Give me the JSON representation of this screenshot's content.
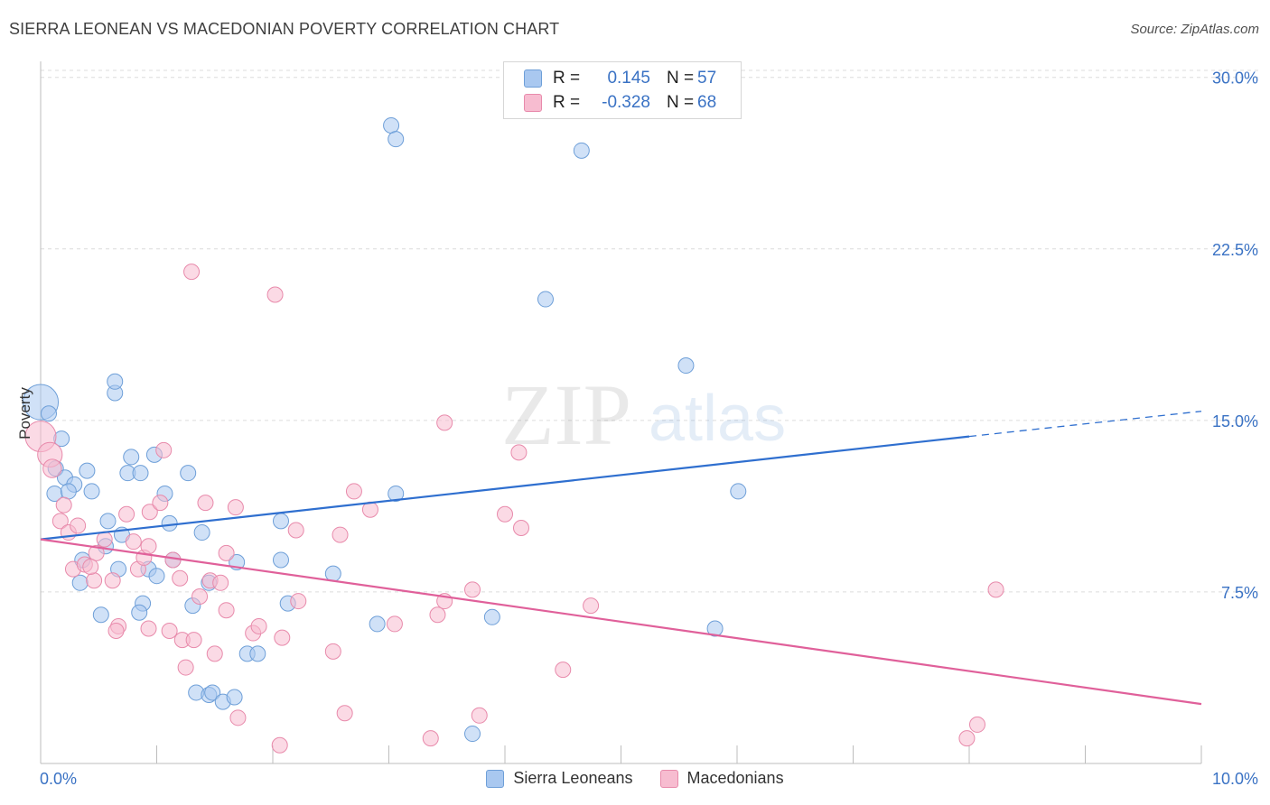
{
  "header": {
    "title": "SIERRA LEONEAN VS MACEDONIAN POVERTY CORRELATION CHART",
    "source": "Source: ZipAtlas.com"
  },
  "watermark": {
    "zip": "ZIP",
    "atlas": "atlas"
  },
  "legend": {
    "r_label": "R =",
    "n_label": "N =",
    "series": [
      {
        "name": "Sierra Leoneans",
        "r": "0.145",
        "n": "57",
        "color": "#a9c8f0",
        "stroke": "#6e9fd8"
      },
      {
        "name": "Macedonians",
        "r": "-0.328",
        "n": "68",
        "color": "#f7bcd0",
        "stroke": "#e88aab"
      }
    ]
  },
  "chart_data": {
    "type": "scatter",
    "title": "SIERRA LEONEAN VS MACEDONIAN POVERTY CORRELATION CHART",
    "xlabel": "",
    "ylabel": "Poverty",
    "xlim": [
      0,
      10
    ],
    "ylim": [
      0,
      30.7
    ],
    "x_tick_labels": [
      "0.0%",
      "10.0%"
    ],
    "y_ticks": [
      7.5,
      15.0,
      22.5,
      30.0
    ],
    "y_tick_labels": [
      "7.5%",
      "15.0%",
      "22.5%",
      "30.0%"
    ],
    "series": [
      {
        "name": "Sierra Leoneans",
        "color": "#a9c8f0",
        "stroke": "#6e9fd8",
        "line_color": "#2f6fcf",
        "trend": {
          "x0": 0,
          "y0": 9.8,
          "x1": 8.0,
          "y1": 14.3,
          "x_end": 10.0,
          "y_end": 15.4
        },
        "points": [
          [
            0.0,
            15.8,
            2.3
          ],
          [
            0.07,
            15.3,
            1
          ],
          [
            0.18,
            14.2,
            1
          ],
          [
            0.13,
            12.9,
            1
          ],
          [
            0.21,
            12.5,
            1
          ],
          [
            0.29,
            12.2,
            1
          ],
          [
            0.4,
            12.8,
            1
          ],
          [
            0.12,
            11.8,
            1
          ],
          [
            0.24,
            11.9,
            1
          ],
          [
            0.44,
            11.9,
            1
          ],
          [
            0.64,
            16.2,
            1
          ],
          [
            0.64,
            16.7,
            1
          ],
          [
            0.78,
            13.4,
            1
          ],
          [
            0.98,
            13.5,
            1
          ],
          [
            0.75,
            12.7,
            1
          ],
          [
            0.86,
            12.7,
            1
          ],
          [
            1.27,
            12.7,
            1
          ],
          [
            1.07,
            11.8,
            1
          ],
          [
            0.58,
            10.6,
            1
          ],
          [
            0.7,
            10.0,
            1
          ],
          [
            0.56,
            9.5,
            1
          ],
          [
            1.11,
            10.5,
            1
          ],
          [
            1.39,
            10.1,
            1
          ],
          [
            0.36,
            8.9,
            1
          ],
          [
            0.67,
            8.5,
            1
          ],
          [
            0.93,
            8.5,
            1
          ],
          [
            1.0,
            8.2,
            1
          ],
          [
            1.14,
            8.9,
            1
          ],
          [
            0.34,
            7.9,
            1
          ],
          [
            1.45,
            7.9,
            1
          ],
          [
            1.69,
            8.8,
            1
          ],
          [
            2.07,
            10.6,
            1
          ],
          [
            2.07,
            8.9,
            1
          ],
          [
            2.52,
            8.3,
            1
          ],
          [
            0.88,
            7.0,
            1
          ],
          [
            1.31,
            6.9,
            1
          ],
          [
            0.85,
            6.6,
            1
          ],
          [
            0.52,
            6.5,
            1
          ],
          [
            2.13,
            7.0,
            1
          ],
          [
            3.02,
            27.9,
            1
          ],
          [
            3.06,
            27.3,
            1
          ],
          [
            4.66,
            26.8,
            1
          ],
          [
            4.35,
            20.3,
            1
          ],
          [
            5.56,
            17.4,
            1
          ],
          [
            3.06,
            11.8,
            1
          ],
          [
            6.01,
            11.9,
            1
          ],
          [
            2.9,
            6.1,
            1
          ],
          [
            3.89,
            6.4,
            1
          ],
          [
            5.81,
            5.9,
            1
          ],
          [
            1.78,
            4.8,
            1
          ],
          [
            1.87,
            4.8,
            1
          ],
          [
            1.34,
            3.1,
            1
          ],
          [
            1.45,
            3.0,
            1
          ],
          [
            1.48,
            3.1,
            1
          ],
          [
            1.57,
            2.7,
            1
          ],
          [
            1.67,
            2.9,
            1
          ],
          [
            3.72,
            1.3,
            1
          ]
        ]
      },
      {
        "name": "Macedonians",
        "color": "#f7bcd0",
        "stroke": "#e88aab",
        "line_color": "#e0609a",
        "trend": {
          "x0": 0,
          "y0": 9.8,
          "x1": 10.0,
          "y1": 2.6
        },
        "points": [
          [
            0.0,
            14.3,
            2.0
          ],
          [
            0.08,
            13.5,
            1.6
          ],
          [
            0.1,
            12.9,
            1.2
          ],
          [
            0.2,
            11.3,
            1
          ],
          [
            0.17,
            10.6,
            1
          ],
          [
            0.24,
            10.1,
            1
          ],
          [
            0.32,
            10.4,
            1
          ],
          [
            0.28,
            8.5,
            1
          ],
          [
            0.38,
            8.7,
            1
          ],
          [
            0.46,
            8.0,
            1
          ],
          [
            0.48,
            9.2,
            1
          ],
          [
            0.55,
            9.8,
            1
          ],
          [
            0.62,
            8.0,
            1
          ],
          [
            0.74,
            10.9,
            1
          ],
          [
            0.8,
            9.7,
            1
          ],
          [
            0.84,
            8.5,
            1
          ],
          [
            0.89,
            9.0,
            1
          ],
          [
            0.94,
            11.0,
            1
          ],
          [
            1.03,
            11.4,
            1
          ],
          [
            1.06,
            13.7,
            1
          ],
          [
            1.14,
            8.9,
            1
          ],
          [
            1.2,
            8.1,
            1
          ],
          [
            1.37,
            7.3,
            1
          ],
          [
            1.42,
            11.4,
            1
          ],
          [
            1.46,
            8.0,
            1
          ],
          [
            1.6,
            9.2,
            1
          ],
          [
            1.68,
            11.2,
            1
          ],
          [
            1.3,
            21.5,
            1
          ],
          [
            2.02,
            20.5,
            1
          ],
          [
            0.67,
            6.0,
            1
          ],
          [
            0.65,
            5.8,
            1
          ],
          [
            0.93,
            5.9,
            1
          ],
          [
            1.11,
            5.8,
            1
          ],
          [
            1.22,
            5.4,
            1
          ],
          [
            1.32,
            5.4,
            1
          ],
          [
            1.25,
            4.2,
            1
          ],
          [
            1.5,
            4.8,
            1
          ],
          [
            1.6,
            6.7,
            1
          ],
          [
            1.83,
            5.7,
            1
          ],
          [
            1.88,
            6.0,
            1
          ],
          [
            2.08,
            5.5,
            1
          ],
          [
            2.22,
            7.1,
            1
          ],
          [
            2.2,
            10.2,
            1
          ],
          [
            2.58,
            10.0,
            1
          ],
          [
            2.7,
            11.9,
            1
          ],
          [
            2.84,
            11.1,
            1
          ],
          [
            2.52,
            4.9,
            1
          ],
          [
            2.62,
            2.2,
            1
          ],
          [
            1.7,
            2.0,
            1
          ],
          [
            2.06,
            0.8,
            1
          ],
          [
            3.48,
            14.9,
            1
          ],
          [
            3.42,
            6.5,
            1
          ],
          [
            3.48,
            7.1,
            1
          ],
          [
            3.72,
            7.6,
            1
          ],
          [
            3.05,
            6.1,
            1
          ],
          [
            3.78,
            2.1,
            1
          ],
          [
            3.36,
            1.1,
            1
          ],
          [
            4.0,
            10.9,
            1
          ],
          [
            4.12,
            13.6,
            1
          ],
          [
            4.14,
            10.3,
            1
          ],
          [
            4.74,
            6.9,
            1
          ],
          [
            4.5,
            4.1,
            1
          ],
          [
            8.23,
            7.6,
            1
          ],
          [
            8.07,
            1.7,
            1
          ],
          [
            7.98,
            1.1,
            1
          ],
          [
            1.55,
            7.9,
            1
          ],
          [
            0.43,
            8.6,
            1
          ],
          [
            0.93,
            9.5,
            1
          ]
        ]
      }
    ]
  }
}
